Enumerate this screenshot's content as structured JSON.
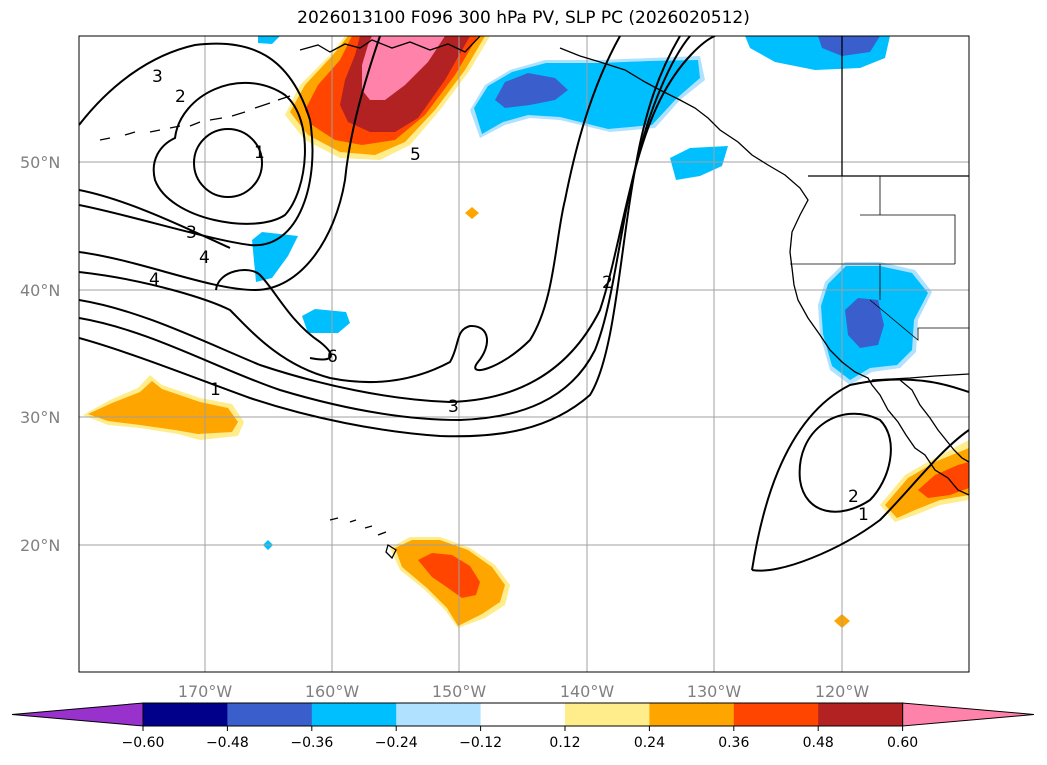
{
  "title": "2026013100 F096 300 hPa PV, SLP PC (2026020512)",
  "lat_labels": [
    "50°N",
    "40°N",
    "30°N",
    "20°N"
  ],
  "lon_labels": [
    "170°W",
    "160°W",
    "150°W",
    "140°W",
    "130°W",
    "120°W"
  ],
  "colorbar": {
    "ticks": [
      "−0.60",
      "−0.48",
      "−0.36",
      "−0.24",
      "−0.12",
      "0.12",
      "0.24",
      "0.36",
      "0.48",
      "0.60"
    ],
    "colors": [
      "#9932CC",
      "#00008B",
      "#3A5FCD",
      "#00BFFF",
      "#B0E2FF",
      "#FFFFFF",
      "#FFEC8B",
      "#FFA500",
      "#FF4500",
      "#B22222",
      "#FF82AB"
    ]
  },
  "contour_labels": [
    "3",
    "2",
    "1",
    "5",
    "3",
    "4",
    "4",
    "1",
    "6",
    "3",
    "2",
    "2",
    "1"
  ],
  "colors": {
    "grid": "#a0a0a0",
    "contour": "#000000",
    "coast": "#000000"
  }
}
